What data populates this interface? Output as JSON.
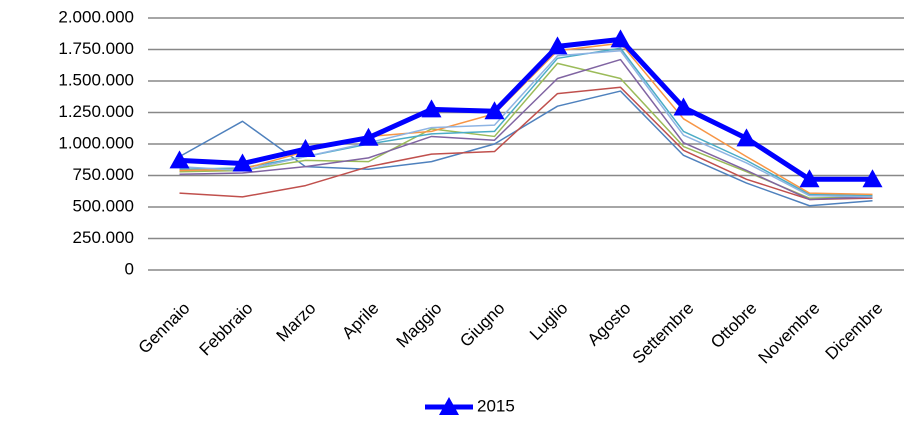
{
  "chart_data": {
    "type": "line",
    "categories": [
      "Gennaio",
      "Febbraio",
      "Marzo",
      "Aprile",
      "Maggio",
      "Giugno",
      "Luglio",
      "Agosto",
      "Settembre",
      "Ottobre",
      "Novembre",
      "Dicembre"
    ],
    "ylim": [
      0,
      2000000
    ],
    "yticks": [
      0,
      {
        "value": 250000,
        "label": "250.000"
      },
      {
        "value": 500000,
        "label": "500.000"
      },
      {
        "value": 750000,
        "label": "750.000"
      },
      {
        "value": 1000000,
        "label": "1.000.000"
      },
      {
        "value": 1250000,
        "label": "1.250.000"
      },
      {
        "value": 1500000,
        "label": "1.500.000"
      },
      {
        "value": 1750000,
        "label": "1.750.000"
      },
      {
        "value": 2000000,
        "label": "2.000.000"
      }
    ],
    "grid": true,
    "legend": "bottom",
    "series": [
      {
        "color": "#4f81bd",
        "values": [
          900000,
          1180000,
          820000,
          800000,
          860000,
          1000000,
          1300000,
          1420000,
          910000,
          690000,
          510000,
          550000
        ]
      },
      {
        "color": "#c0504d",
        "values": [
          610000,
          580000,
          670000,
          820000,
          920000,
          940000,
          1400000,
          1450000,
          950000,
          720000,
          560000,
          570000
        ]
      },
      {
        "color": "#9bbb59",
        "values": [
          780000,
          790000,
          870000,
          860000,
          1120000,
          1060000,
          1640000,
          1520000,
          980000,
          780000,
          570000,
          580000
        ]
      },
      {
        "color": "#8064a2",
        "values": [
          760000,
          770000,
          820000,
          890000,
          1060000,
          1030000,
          1520000,
          1670000,
          1010000,
          790000,
          560000,
          580000
        ]
      },
      {
        "color": "#4bacc6",
        "values": [
          800000,
          810000,
          900000,
          1000000,
          1080000,
          1100000,
          1680000,
          1760000,
          1100000,
          870000,
          600000,
          590000
        ]
      },
      {
        "color": "#f79646",
        "values": [
          790000,
          800000,
          940000,
          1060000,
          1100000,
          1240000,
          1740000,
          1800000,
          1200000,
          900000,
          610000,
          600000
        ]
      },
      {
        "color": "#8eb4e3",
        "values": [
          820000,
          790000,
          900000,
          1010000,
          1130000,
          1150000,
          1700000,
          1740000,
          1070000,
          850000,
          590000,
          580000
        ]
      },
      {
        "name": "2015",
        "color": "#0000ff",
        "values": [
          870000,
          845000,
          960000,
          1050000,
          1275000,
          1260000,
          1775000,
          1830000,
          1290000,
          1045000,
          720000,
          720000
        ]
      }
    ]
  }
}
